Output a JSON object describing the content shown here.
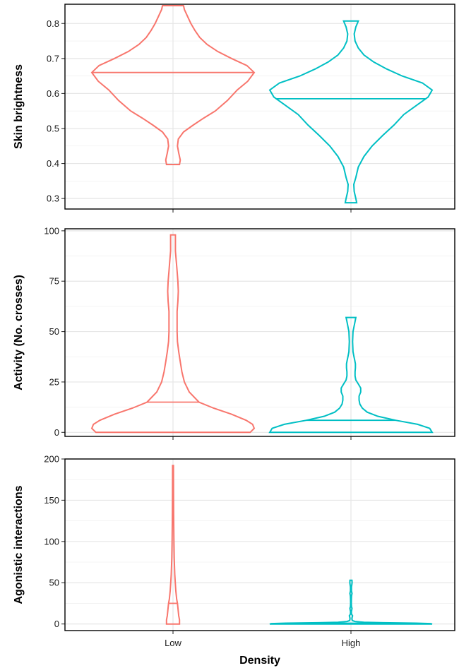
{
  "colors": {
    "low": "#F8766D",
    "high": "#00BFC4"
  },
  "chart_data": [
    {
      "type": "violin",
      "categories": [
        "Low",
        "High"
      ],
      "ylabel": "Skin brightness",
      "ylim": [
        0.27,
        0.855
      ],
      "y_ticks": [
        0.3,
        0.4,
        0.5,
        0.6,
        0.7,
        0.8
      ],
      "y_tick_labels": [
        "0.3",
        "0.4",
        "0.5",
        "0.6",
        "0.7",
        "0.8"
      ],
      "grid": true,
      "series": [
        {
          "category": "Low",
          "median": 0.66,
          "min": 0.397,
          "max": 0.851,
          "profile": [
            [
              0.397,
              0.08
            ],
            [
              0.41,
              0.09
            ],
            [
              0.43,
              0.07
            ],
            [
              0.45,
              0.055
            ],
            [
              0.47,
              0.065
            ],
            [
              0.49,
              0.13
            ],
            [
              0.51,
              0.25
            ],
            [
              0.53,
              0.38
            ],
            [
              0.55,
              0.52
            ],
            [
              0.58,
              0.67
            ],
            [
              0.61,
              0.79
            ],
            [
              0.635,
              0.92
            ],
            [
              0.66,
              1.0
            ],
            [
              0.68,
              0.91
            ],
            [
              0.7,
              0.72
            ],
            [
              0.72,
              0.55
            ],
            [
              0.74,
              0.42
            ],
            [
              0.76,
              0.33
            ],
            [
              0.78,
              0.27
            ],
            [
              0.8,
              0.22
            ],
            [
              0.82,
              0.18
            ],
            [
              0.84,
              0.14
            ],
            [
              0.851,
              0.13
            ]
          ]
        },
        {
          "category": "High",
          "median": 0.585,
          "min": 0.288,
          "max": 0.807,
          "profile": [
            [
              0.288,
              0.07
            ],
            [
              0.3,
              0.06
            ],
            [
              0.32,
              0.04
            ],
            [
              0.34,
              0.035
            ],
            [
              0.36,
              0.06
            ],
            [
              0.39,
              0.09
            ],
            [
              0.42,
              0.16
            ],
            [
              0.45,
              0.26
            ],
            [
              0.48,
              0.39
            ],
            [
              0.51,
              0.53
            ],
            [
              0.54,
              0.65
            ],
            [
              0.57,
              0.83
            ],
            [
              0.59,
              0.95
            ],
            [
              0.61,
              1.0
            ],
            [
              0.63,
              0.88
            ],
            [
              0.65,
              0.63
            ],
            [
              0.67,
              0.44
            ],
            [
              0.69,
              0.28
            ],
            [
              0.71,
              0.16
            ],
            [
              0.73,
              0.09
            ],
            [
              0.75,
              0.05
            ],
            [
              0.77,
              0.04
            ],
            [
              0.79,
              0.06
            ],
            [
              0.807,
              0.09
            ]
          ]
        }
      ]
    },
    {
      "type": "violin",
      "categories": [
        "Low",
        "High"
      ],
      "ylabel": "Activity (No. crosses)",
      "ylim": [
        -2,
        101
      ],
      "y_ticks": [
        0,
        25,
        50,
        75,
        100
      ],
      "y_tick_labels": [
        "0",
        "25",
        "50",
        "75",
        "100"
      ],
      "grid": true,
      "series": [
        {
          "category": "Low",
          "median": 15,
          "min": 0,
          "max": 98,
          "profile": [
            [
              0,
              0.95
            ],
            [
              2,
              1.0
            ],
            [
              4,
              0.98
            ],
            [
              6,
              0.9
            ],
            [
              9,
              0.72
            ],
            [
              12,
              0.5
            ],
            [
              15,
              0.32
            ],
            [
              20,
              0.2
            ],
            [
              25,
              0.14
            ],
            [
              30,
              0.11
            ],
            [
              35,
              0.09
            ],
            [
              40,
              0.07
            ],
            [
              45,
              0.055
            ],
            [
              50,
              0.05
            ],
            [
              55,
              0.05
            ],
            [
              60,
              0.05
            ],
            [
              65,
              0.06
            ],
            [
              70,
              0.065
            ],
            [
              75,
              0.06
            ],
            [
              80,
              0.05
            ],
            [
              85,
              0.04
            ],
            [
              90,
              0.03
            ],
            [
              95,
              0.03
            ],
            [
              98,
              0.03
            ]
          ]
        },
        {
          "category": "High",
          "median": 6,
          "min": 0,
          "max": 57,
          "profile": [
            [
              0,
              1.0
            ],
            [
              2,
              0.97
            ],
            [
              4,
              0.82
            ],
            [
              6,
              0.55
            ],
            [
              8,
              0.33
            ],
            [
              10,
              0.2
            ],
            [
              12,
              0.14
            ],
            [
              14,
              0.11
            ],
            [
              16,
              0.1
            ],
            [
              18,
              0.1
            ],
            [
              20,
              0.12
            ],
            [
              22,
              0.12
            ],
            [
              24,
              0.09
            ],
            [
              26,
              0.06
            ],
            [
              28,
              0.05
            ],
            [
              30,
              0.05
            ],
            [
              32,
              0.055
            ],
            [
              34,
              0.055
            ],
            [
              36,
              0.045
            ],
            [
              38,
              0.035
            ],
            [
              40,
              0.025
            ],
            [
              45,
              0.02
            ],
            [
              50,
              0.025
            ],
            [
              55,
              0.05
            ],
            [
              57,
              0.06
            ]
          ]
        }
      ]
    },
    {
      "type": "violin",
      "categories": [
        "Low",
        "High"
      ],
      "xlabel": "Density",
      "ylabel": "Agonistic interactions",
      "ylim": [
        -8,
        200
      ],
      "y_ticks": [
        0,
        50,
        100,
        150,
        200
      ],
      "y_tick_labels": [
        "0",
        "50",
        "100",
        "150",
        "200"
      ],
      "x_tick_labels": [
        "Low",
        "High"
      ],
      "grid": true,
      "series": [
        {
          "category": "Low",
          "median": 25,
          "min": 0,
          "max": 192,
          "profile": [
            [
              0,
              0.08
            ],
            [
              5,
              0.08
            ],
            [
              10,
              0.07
            ],
            [
              15,
              0.065
            ],
            [
              20,
              0.06
            ],
            [
              25,
              0.055
            ],
            [
              30,
              0.045
            ],
            [
              40,
              0.035
            ],
            [
              50,
              0.028
            ],
            [
              60,
              0.022
            ],
            [
              80,
              0.015
            ],
            [
              100,
              0.011
            ],
            [
              130,
              0.008
            ],
            [
              160,
              0.006
            ],
            [
              192,
              0.005
            ]
          ]
        },
        {
          "category": "High",
          "median": 1,
          "min": 0,
          "max": 53,
          "profile": [
            [
              0,
              1.0
            ],
            [
              0.5,
              0.98
            ],
            [
              1,
              0.8
            ],
            [
              1.5,
              0.4
            ],
            [
              2,
              0.16
            ],
            [
              3,
              0.05
            ],
            [
              4,
              0.02
            ],
            [
              5,
              0.014
            ],
            [
              7,
              0.012
            ],
            [
              10,
              0.02
            ],
            [
              12,
              0.006
            ],
            [
              15,
              0.005
            ],
            [
              17,
              0.01
            ],
            [
              19,
              0.013
            ],
            [
              21,
              0.006
            ],
            [
              25,
              0.004
            ],
            [
              30,
              0.005
            ],
            [
              34,
              0.007
            ],
            [
              37,
              0.013
            ],
            [
              40,
              0.006
            ],
            [
              45,
              0.006
            ],
            [
              48,
              0.011
            ],
            [
              50,
              0.014
            ],
            [
              52,
              0.013
            ],
            [
              53,
              0.012
            ]
          ]
        }
      ]
    }
  ]
}
